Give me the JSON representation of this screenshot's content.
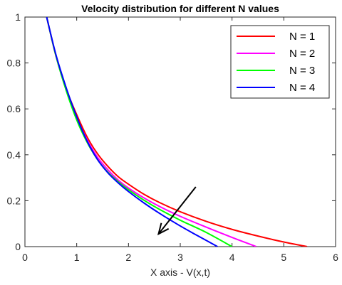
{
  "chart_data": {
    "type": "line",
    "title": "Velocity distribution for different N values",
    "xlabel": "X axis - V(x,t)",
    "ylabel": "",
    "xlim": [
      0,
      6
    ],
    "ylim": [
      0,
      1
    ],
    "xticks": [
      "0",
      "1",
      "2",
      "3",
      "4",
      "5",
      "6"
    ],
    "yticks": [
      "0",
      "0.2",
      "0.4",
      "0.6",
      "0.8",
      "1"
    ],
    "grid": false,
    "legend_position": "top-right",
    "series": [
      {
        "name": "N = 1",
        "color": "#ff0000",
        "x": [
          0.42,
          0.6,
          0.8,
          1.0,
          1.2,
          1.4,
          1.6,
          1.8,
          2.0,
          2.3,
          2.6,
          3.0,
          3.5,
          4.0,
          4.5,
          5.0,
          5.45
        ],
        "y": [
          1.0,
          0.83,
          0.685,
          0.575,
          0.478,
          0.405,
          0.35,
          0.305,
          0.272,
          0.228,
          0.192,
          0.152,
          0.11,
          0.075,
          0.046,
          0.02,
          0.0
        ]
      },
      {
        "name": "N = 2",
        "color": "#ff00ff",
        "x": [
          0.42,
          0.6,
          0.8,
          1.0,
          1.2,
          1.4,
          1.6,
          1.8,
          2.0,
          2.3,
          2.6,
          3.0,
          3.5,
          4.0,
          4.47
        ],
        "y": [
          1.0,
          0.83,
          0.68,
          0.56,
          0.465,
          0.39,
          0.335,
          0.29,
          0.255,
          0.212,
          0.175,
          0.132,
          0.085,
          0.04,
          0.0
        ]
      },
      {
        "name": "N = 3",
        "color": "#00ff00",
        "x": [
          0.42,
          0.6,
          0.8,
          1.0,
          1.2,
          1.4,
          1.6,
          1.8,
          2.0,
          2.3,
          2.6,
          3.0,
          3.5,
          4.0
        ],
        "y": [
          1.0,
          0.83,
          0.678,
          0.552,
          0.455,
          0.38,
          0.325,
          0.283,
          0.248,
          0.202,
          0.162,
          0.115,
          0.062,
          0.0
        ]
      },
      {
        "name": "N = 4",
        "color": "#0000ff",
        "x": [
          0.42,
          0.6,
          0.8,
          1.0,
          1.2,
          1.4,
          1.6,
          1.8,
          2.0,
          2.3,
          2.6,
          3.0,
          3.3,
          3.72
        ],
        "y": [
          1.0,
          0.835,
          0.69,
          0.565,
          0.46,
          0.38,
          0.322,
          0.278,
          0.24,
          0.19,
          0.145,
          0.09,
          0.052,
          0.0
        ]
      }
    ],
    "annotations": [
      {
        "type": "arrow",
        "from": [
          3.3,
          0.26
        ],
        "to": [
          2.58,
          0.055
        ]
      }
    ]
  }
}
